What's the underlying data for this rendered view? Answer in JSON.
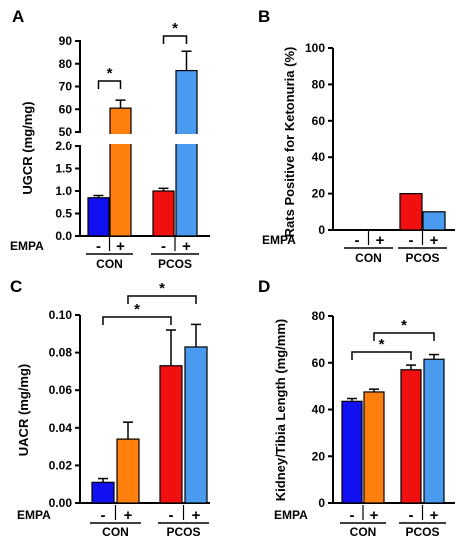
{
  "colors": {
    "con_vehicle": "#1010f0",
    "con_empa": "#ff7f0e",
    "pcos_vehicle": "#f01010",
    "pcos_empa": "#4a9af0"
  },
  "chart_data": [
    {
      "panel": "A",
      "type": "bar",
      "ylabel": "UGCR (mg/mg)",
      "groups": [
        "CON",
        "PCOS"
      ],
      "treatment_label": "EMPA",
      "treatment_signs": [
        "-",
        "+"
      ],
      "axis_break": {
        "lower": [
          0,
          2.0
        ],
        "upper": [
          50,
          90
        ]
      },
      "lower_ticks": [
        "0.0",
        "0.5",
        "1.0",
        "1.5",
        "2.0"
      ],
      "upper_ticks": [
        "50",
        "60",
        "70",
        "80",
        "90"
      ],
      "values": [
        0.85,
        60.5,
        1.0,
        77
      ],
      "errors": [
        0.05,
        3.5,
        0.06,
        8.5
      ],
      "significance": [
        {
          "label": "*",
          "bars": [
            0,
            1
          ]
        },
        {
          "label": "*",
          "bars": [
            2,
            3
          ]
        }
      ]
    },
    {
      "panel": "B",
      "type": "bar",
      "ylabel": "Rats Positive for Ketonuria (%)",
      "groups": [
        "CON",
        "PCOS"
      ],
      "treatment_label": "EMPA",
      "treatment_signs": [
        "-",
        "+"
      ],
      "ylim": [
        0,
        100
      ],
      "ticks": [
        "0",
        "20",
        "40",
        "60",
        "80",
        "100"
      ],
      "values": [
        0,
        0,
        20,
        10
      ],
      "errors": [
        0,
        0,
        0,
        0
      ],
      "significance": []
    },
    {
      "panel": "C",
      "type": "bar",
      "ylabel": "UACR (mg/mg)",
      "groups": [
        "CON",
        "PCOS"
      ],
      "treatment_label": "EMPA",
      "treatment_signs": [
        "-",
        "+"
      ],
      "ylim": [
        0,
        0.1
      ],
      "ticks": [
        "0.00",
        "0.02",
        "0.04",
        "0.06",
        "0.08",
        "0.10"
      ],
      "values": [
        0.011,
        0.034,
        0.073,
        0.083
      ],
      "errors": [
        0.002,
        0.009,
        0.019,
        0.012
      ],
      "significance": [
        {
          "label": "*",
          "bars": [
            0,
            2
          ]
        },
        {
          "label": "*",
          "bars": [
            1,
            3
          ]
        }
      ]
    },
    {
      "panel": "D",
      "type": "bar",
      "ylabel": "Kidney/Tibia Length (mg/mm)",
      "groups": [
        "CON",
        "PCOS"
      ],
      "treatment_label": "EMPA",
      "treatment_signs": [
        "-",
        "+"
      ],
      "ylim": [
        0,
        80
      ],
      "ticks": [
        "0",
        "20",
        "40",
        "60",
        "80"
      ],
      "values": [
        43.5,
        47.5,
        57,
        61.5
      ],
      "errors": [
        1.2,
        1.2,
        2.0,
        2.0
      ],
      "significance": [
        {
          "label": "*",
          "bars": [
            0,
            2
          ]
        },
        {
          "label": "*",
          "bars": [
            1,
            3
          ]
        }
      ]
    }
  ]
}
